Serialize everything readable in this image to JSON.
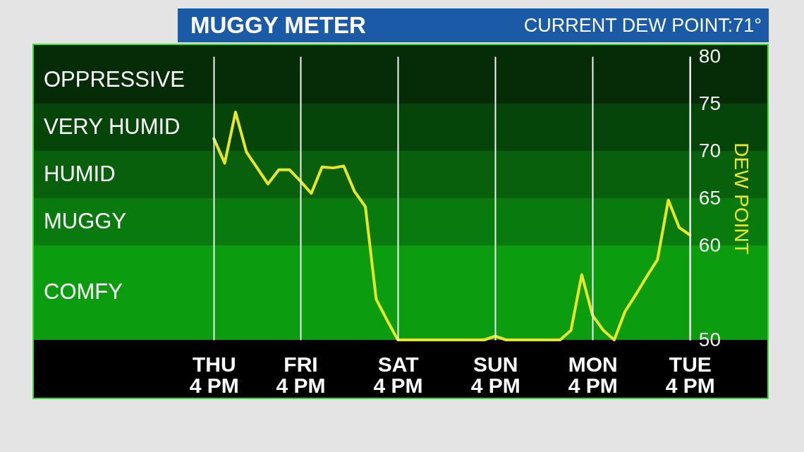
{
  "chart_data": {
    "type": "line",
    "title": "MUGGY METER",
    "subtitle": "CURRENT DEW POINT:71°",
    "ylabel": "DEW POINT",
    "categories": [
      "THU\n4 PM",
      null,
      null,
      null,
      null,
      null,
      null,
      null,
      "FRI\n4 PM",
      null,
      null,
      null,
      null,
      null,
      null,
      null,
      null,
      "SAT\n4 PM",
      null,
      null,
      null,
      null,
      null,
      null,
      null,
      null,
      "SUN\n4 PM",
      null,
      null,
      null,
      null,
      null,
      null,
      null,
      null,
      "MON\n4 PM",
      null,
      null,
      null,
      null,
      null,
      null,
      null,
      null,
      "TUE\n4 PM"
    ],
    "values": [
      71.3,
      68.7,
      74.1,
      69.9,
      68.2,
      66.5,
      68.0,
      68.0,
      66.8,
      65.5,
      68.3,
      68.2,
      68.4,
      65.7,
      64.1,
      54.3,
      52.1,
      50.0,
      50.0,
      50.0,
      50.0,
      50.0,
      50.0,
      50.0,
      50.0,
      50.0,
      50.4,
      50.0,
      50.0,
      50.0,
      50.0,
      50.0,
      50.0,
      51.0,
      56.9,
      52.6,
      51.0,
      50.0,
      53.0,
      54.8,
      56.7,
      58.5,
      64.8,
      61.9,
      61.1
    ],
    "color": "#e8e62a",
    "ylim": [
      50,
      80
    ],
    "yticks": [
      50,
      60,
      65,
      70,
      75,
      80
    ],
    "bands": [
      {
        "axis": "y",
        "from": 75,
        "to": 80,
        "label": "OPPRESSIVE",
        "color": "#062c07"
      },
      {
        "axis": "y",
        "from": 70,
        "to": 75,
        "label": "VERY HUMID",
        "color": "#064509"
      },
      {
        "axis": "y",
        "from": 65,
        "to": 70,
        "label": "HUMID",
        "color": "#08600c"
      },
      {
        "axis": "y",
        "from": 60,
        "to": 65,
        "label": "MUGGY",
        "color": "#097a0e"
      },
      {
        "axis": "y",
        "from": 50,
        "to": 60,
        "label": "COMFY",
        "color": "#0b9c0f"
      }
    ],
    "grid": "x"
  }
}
